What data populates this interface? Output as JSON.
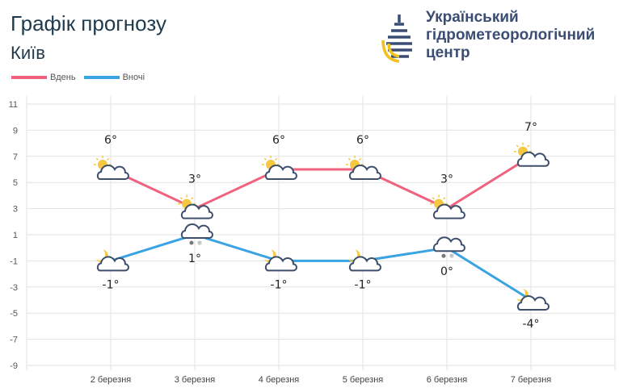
{
  "header": {
    "title": "Графік прогнозу",
    "city": "Київ",
    "org_lines": [
      "Український",
      "гідрометеорологічний",
      "центр"
    ]
  },
  "colors": {
    "day": "#f0627d",
    "night": "#3aa3e3"
  },
  "chart_data": {
    "type": "line",
    "categories": [
      "2 березня",
      "3 березня",
      "4 березня",
      "5 березня",
      "6 березня",
      "7 березня"
    ],
    "series": [
      {
        "name": "Вдень",
        "values": [
          6,
          3,
          6,
          6,
          3,
          7
        ],
        "labels": [
          "6°",
          "3°",
          "6°",
          "6°",
          "3°",
          "7°"
        ],
        "icons": [
          "sun-cloud-icon",
          "sun-cloud-icon",
          "sun-cloud-icon",
          "sun-cloud-icon",
          "sun-cloud-icon",
          "sun-cloud-icon"
        ]
      },
      {
        "name": "Вночі",
        "values": [
          -1,
          1,
          -1,
          -1,
          0,
          -4
        ],
        "labels": [
          "-1°",
          "1°",
          "-1°",
          "-1°",
          "0°",
          "-4°"
        ],
        "icons": [
          "moon-cloud-icon",
          "cloud-rain-snow-icon",
          "moon-cloud-icon",
          "moon-cloud-icon",
          "cloud-rain-snow-icon",
          "moon-cloud-icon"
        ]
      }
    ],
    "yticks": [
      11,
      9,
      7,
      5,
      3,
      1,
      -1,
      -3,
      -5,
      -7,
      -9
    ],
    "ylim": [
      -9,
      11
    ],
    "grid": true,
    "legend": "top-left"
  }
}
